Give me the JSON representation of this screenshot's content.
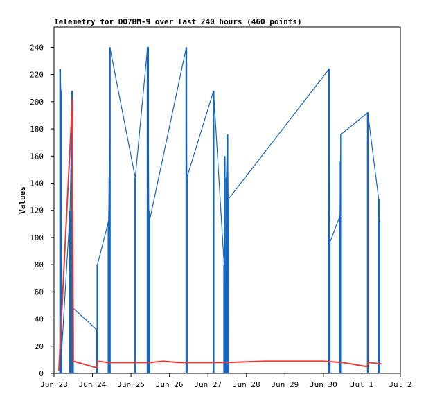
{
  "chart_data": {
    "type": "line",
    "title": "Telemetry for DO7BM-9 over last 240 hours (460 points)",
    "xlabel": "",
    "ylabel": "Values",
    "xlim": [
      "Jun 23",
      "Jul 2"
    ],
    "ylim": [
      0,
      255
    ],
    "x_ticks": [
      "Jun 23",
      "Jun 24",
      "Jun 25",
      "Jun 26",
      "Jun 27",
      "Jun 28",
      "Jun 29",
      "Jun 30",
      "Jul 1",
      "Jul 2"
    ],
    "y_ticks": [
      0,
      20,
      40,
      60,
      80,
      100,
      120,
      140,
      160,
      180,
      200,
      220,
      240
    ],
    "grid": false,
    "legend": "none",
    "series": [
      {
        "color": "#1565c0",
        "style": "spikes",
        "points": [
          {
            "x": "Jun 23 03:50",
            "y": 224
          },
          {
            "x": "Jun 23 04:15",
            "y": 208
          },
          {
            "x": "Jun 23 04:40",
            "y": 14
          },
          {
            "x": "Jun 23 10:00",
            "y": 120
          },
          {
            "x": "Jun 23 11:20",
            "y": 208
          },
          {
            "x": "Jun 23 11:50",
            "y": 48
          },
          {
            "x": "Jun 24 02:50",
            "y": 32
          },
          {
            "x": "Jun 24 03:05",
            "y": 80
          },
          {
            "x": "Jun 24 10:00",
            "y": 112
          },
          {
            "x": "Jun 24 10:30",
            "y": 144
          },
          {
            "x": "Jun 24 10:50",
            "y": 240
          },
          {
            "x": "Jun 25 02:40",
            "y": 144
          },
          {
            "x": "Jun 25 10:20",
            "y": 240
          },
          {
            "x": "Jun 25 10:40",
            "y": 240
          },
          {
            "x": "Jun 25 11:05",
            "y": 120
          },
          {
            "x": "Jun 25 11:30",
            "y": 112
          },
          {
            "x": "Jun 26 10:30",
            "y": 240
          },
          {
            "x": "Jun 26 10:50",
            "y": 144
          },
          {
            "x": "Jun 27 03:30",
            "y": 208
          },
          {
            "x": "Jun 27 10:05",
            "y": 80
          },
          {
            "x": "Jun 27 10:25",
            "y": 160
          },
          {
            "x": "Jun 27 10:45",
            "y": 42
          },
          {
            "x": "Jun 27 11:05",
            "y": 30
          },
          {
            "x": "Jun 27 11:30",
            "y": 144
          },
          {
            "x": "Jun 27 12:10",
            "y": 176
          },
          {
            "x": "Jun 27 12:35",
            "y": 128
          },
          {
            "x": "Jun 30 03:30",
            "y": 224
          },
          {
            "x": "Jun 30 03:55",
            "y": 96
          },
          {
            "x": "Jun 30 10:20",
            "y": 116
          },
          {
            "x": "Jun 30 10:40",
            "y": 156
          },
          {
            "x": "Jun 30 11:00",
            "y": 176
          },
          {
            "x": "Jul 1 03:40",
            "y": 192
          },
          {
            "x": "Jul 1 10:30",
            "y": 128
          },
          {
            "x": "Jul 1 10:55",
            "y": 112
          }
        ]
      },
      {
        "color": "#e53935",
        "style": "line",
        "points": [
          {
            "x": "Jun 23 03:00",
            "y": 2
          },
          {
            "x": "Jun 23 11:30",
            "y": 202
          },
          {
            "x": "Jun 23 12:00",
            "y": 9
          },
          {
            "x": "Jun 24 02:45",
            "y": 4
          },
          {
            "x": "Jun 24 03:20",
            "y": 9
          },
          {
            "x": "Jun 24 10:00",
            "y": 8
          },
          {
            "x": "Jun 25 12:00",
            "y": 8
          },
          {
            "x": "Jun 25 20:00",
            "y": 9
          },
          {
            "x": "Jun 26 06:00",
            "y": 8
          },
          {
            "x": "Jun 26 14:00",
            "y": 8
          },
          {
            "x": "Jun 27 10:00",
            "y": 8
          },
          {
            "x": "Jun 28 12:00",
            "y": 9
          },
          {
            "x": "Jun 30 00:00",
            "y": 9
          },
          {
            "x": "Jun 30 12:00",
            "y": 8
          },
          {
            "x": "Jul 1 03:00",
            "y": 5
          },
          {
            "x": "Jul 1 04:00",
            "y": 8
          },
          {
            "x": "Jul 1 12:00",
            "y": 7
          }
        ]
      }
    ]
  }
}
